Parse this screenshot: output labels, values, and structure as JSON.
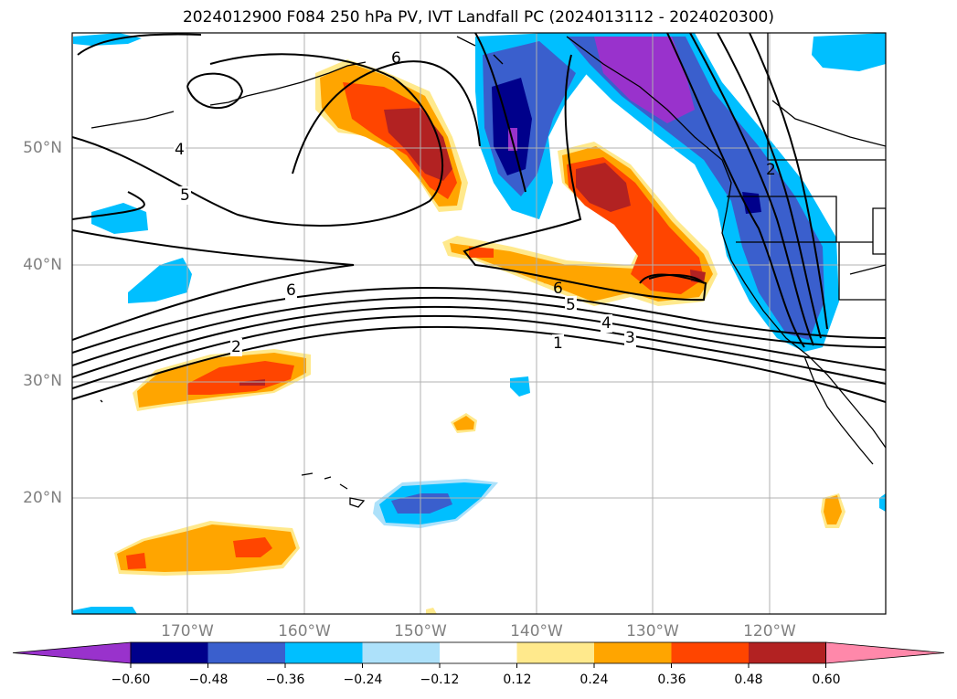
{
  "title": "2024012900 F084 250 hPa PV, IVT Landfall PC (2024013112 - 2024020300)",
  "map": {
    "lon_labels": [
      "170°W",
      "160°W",
      "150°W",
      "140°W",
      "130°W",
      "120°W"
    ],
    "lat_labels": [
      "50°N",
      "40°N",
      "30°N",
      "20°N"
    ],
    "contour_labels": [
      "1",
      "2",
      "3",
      "4",
      "5",
      "6",
      "4",
      "5",
      "6",
      "6",
      "2"
    ],
    "colors": {
      "grid": "#b0b0b0",
      "label": "#808080",
      "contour": "#000000"
    }
  },
  "colorbar": {
    "ticks": [
      "−0.60",
      "−0.48",
      "−0.36",
      "−0.24",
      "−0.12",
      "0.12",
      "0.24",
      "0.36",
      "0.48",
      "0.60"
    ],
    "colors": [
      "#9932CC",
      "#00008B",
      "#3A5FCD",
      "#00BFFF",
      "#ADE1FA",
      "#FFFFFF",
      "#FFE98C",
      "#FFA500",
      "#FF4500",
      "#B22222",
      "#FF88AA"
    ]
  }
}
